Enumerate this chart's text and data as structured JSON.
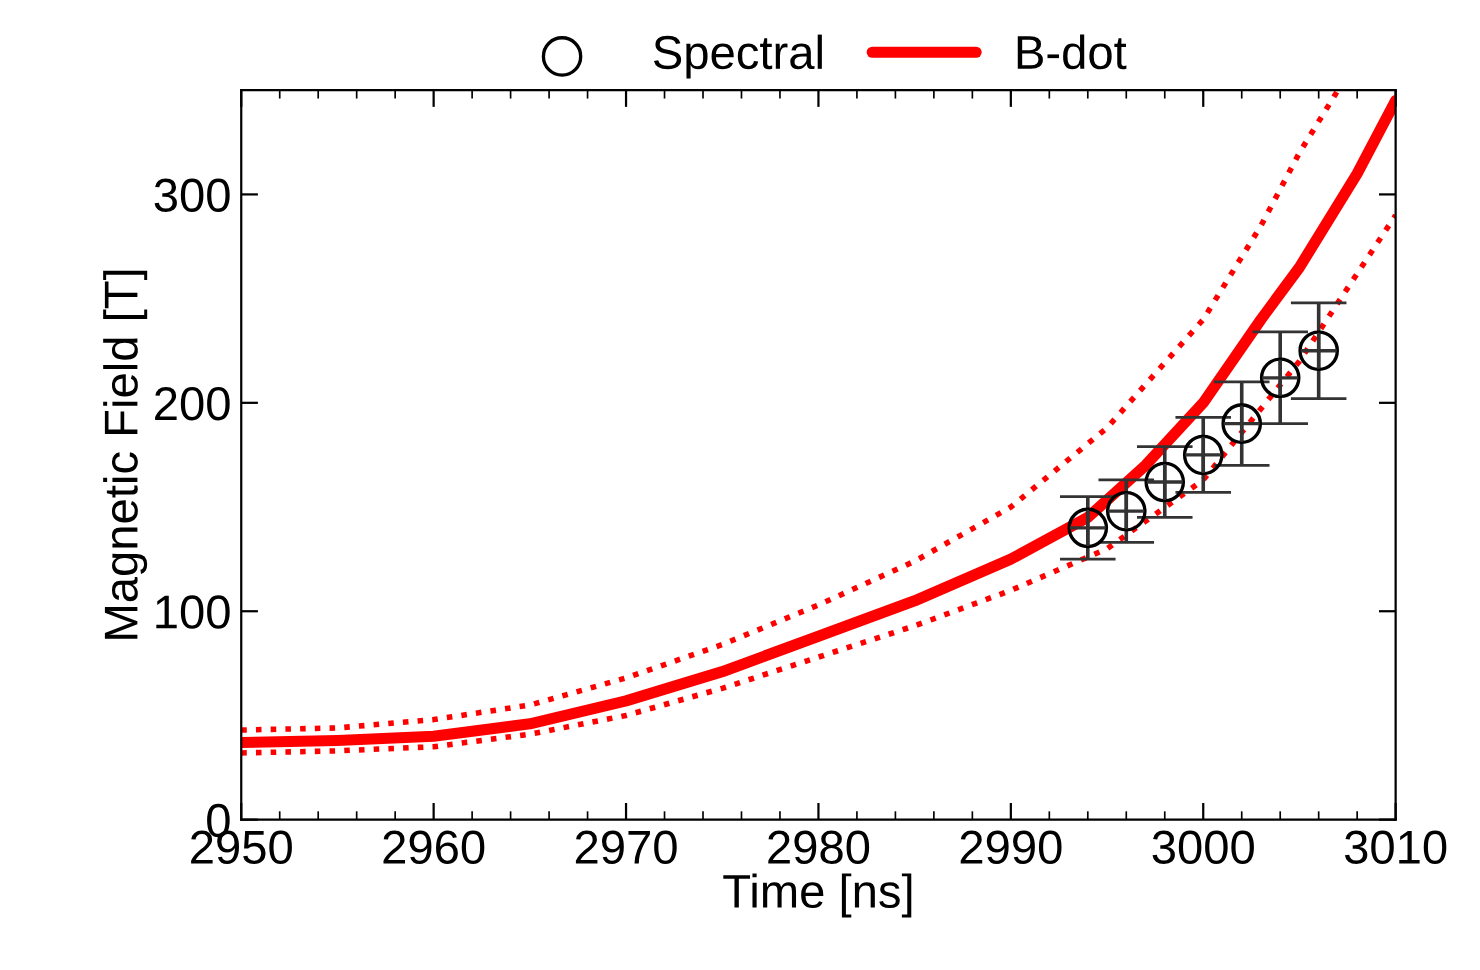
{
  "chart_data": {
    "type": "line",
    "xlabel": "Time [ns]",
    "ylabel": "Magnetic Field [T]",
    "xlim": [
      2950,
      3010
    ],
    "xticks": [
      2950,
      2960,
      2970,
      2980,
      2990,
      3000,
      3010
    ],
    "ylim": [
      0,
      350
    ],
    "yticks": [
      0,
      100,
      200,
      300
    ],
    "grid": false,
    "legend": "top",
    "series": [
      {
        "name": "B-dot",
        "color": "#ff0000",
        "line_style": "solid",
        "marker": "none",
        "x": [
          2950,
          2955,
          2960,
          2965,
          2970,
          2975,
          2980,
          2985,
          2990,
          2994,
          2997,
          3000,
          3003,
          3005,
          3008,
          3010
        ],
        "values": [
          37,
          38,
          40,
          46,
          57,
          71,
          88,
          105,
          125,
          145,
          170,
          200,
          240,
          265,
          310,
          345
        ]
      },
      {
        "color": "#ff0000",
        "line_style": "dotted",
        "marker": "none",
        "x": [
          2950,
          2955,
          2960,
          2965,
          2970,
          2975,
          2980,
          2985,
          2990,
          2995,
          3000,
          3003,
          3005,
          3007
        ],
        "values": [
          43,
          44,
          48,
          55,
          68,
          84,
          103,
          124,
          150,
          188,
          240,
          285,
          320,
          350
        ]
      },
      {
        "color": "#ff0000",
        "line_style": "dotted",
        "marker": "none",
        "x": [
          2950,
          2955,
          2960,
          2965,
          2970,
          2975,
          2980,
          2985,
          2990,
          2995,
          3000,
          3005,
          3010
        ],
        "values": [
          32,
          33,
          35,
          41,
          50,
          63,
          78,
          93,
          110,
          130,
          163,
          220,
          290
        ]
      },
      {
        "name": "Spectral",
        "type": "scatter",
        "color": "#000000",
        "marker": "circle",
        "x": [
          2994,
          2996,
          2998,
          3000,
          3002,
          3004,
          3006
        ],
        "values": [
          140,
          148,
          162,
          175,
          190,
          212,
          225
        ],
        "errors": [
          15,
          15,
          17,
          18,
          20,
          22,
          23
        ]
      }
    ]
  }
}
